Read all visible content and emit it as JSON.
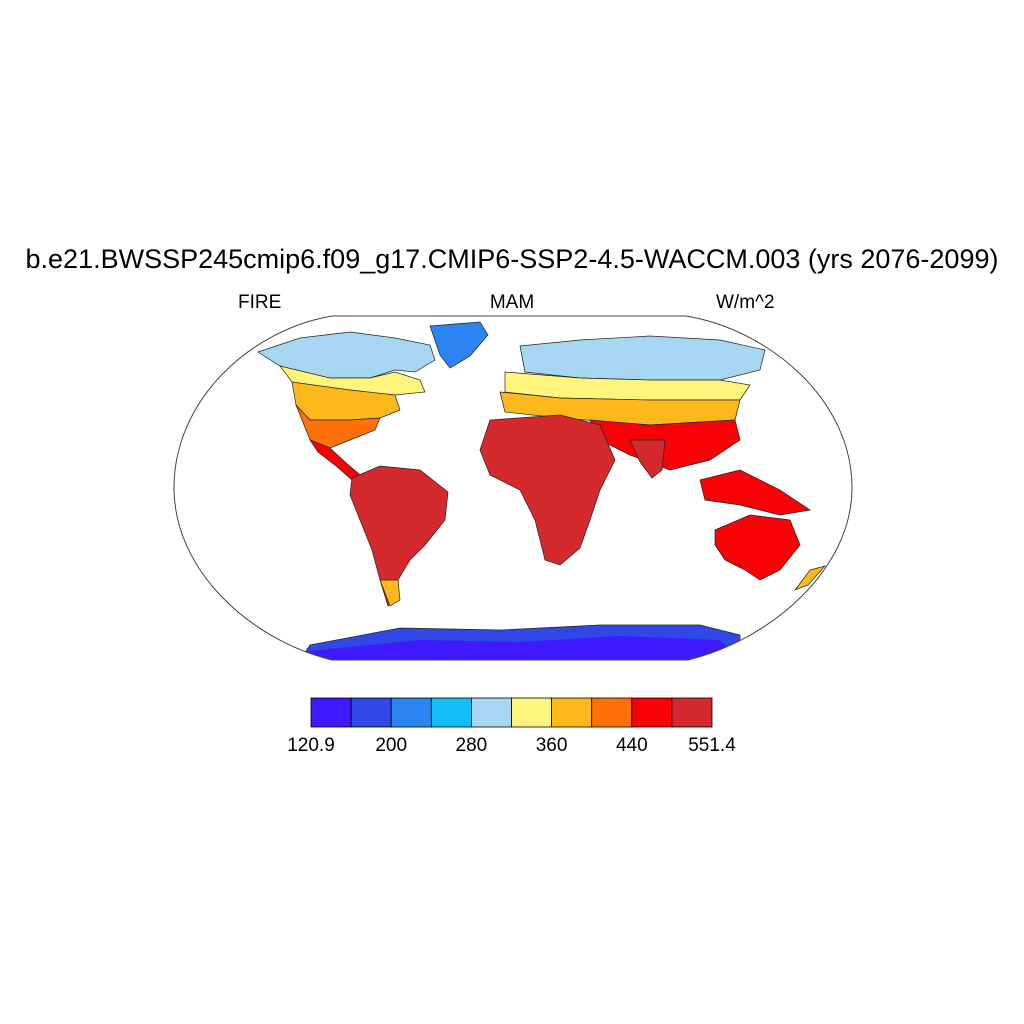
{
  "title": "b.e21.BWSSP245cmip6.f09_g17.CMIP6-SSP2-4.5-WACCM.003 (yrs 2076-2099)",
  "left_string": "FIRE",
  "center_string": "MAM",
  "right_string": "W/m^2",
  "colorbar": {
    "colors": [
      "#3f1aff",
      "#2f48e6",
      "#2b84f2",
      "#15bdf7",
      "#a6d6f2",
      "#fff57c",
      "#fdb81b",
      "#ff7008",
      "#f60207",
      "#d42a2d"
    ],
    "tick_labels": [
      "120.9",
      "200",
      "280",
      "360",
      "440",
      "551.4"
    ]
  },
  "chart_data": {
    "type": "heatmap",
    "projection": "Robinson (global, centered on 0°)",
    "variable": "FIRE",
    "season": "MAM",
    "units": "W/m^2",
    "value_range": [
      120.9,
      551.4
    ],
    "levels": [
      120.9,
      160,
      200,
      240,
      280,
      320,
      360,
      400,
      440,
      480,
      551.4
    ],
    "land_only": true
  }
}
